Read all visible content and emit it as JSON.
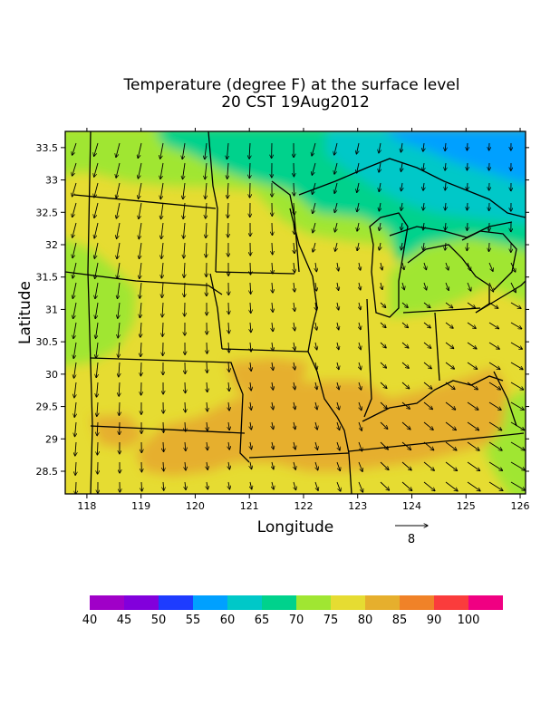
{
  "title": {
    "line1": "Temperature (degree F) at the surface level",
    "line2": "20 CST 19Aug2012"
  },
  "axes": {
    "xlabel": "Longitude",
    "ylabel": "Latitude",
    "xticks": [
      "118",
      "119",
      "120",
      "121",
      "122",
      "123",
      "124",
      "125",
      "126"
    ],
    "yticks": [
      "33.5",
      "33",
      "32.5",
      "32",
      "31.5",
      "31",
      "30.5",
      "30",
      "29.5",
      "29",
      "28.5"
    ],
    "xrange": [
      117.6,
      126.1
    ],
    "yrange": [
      28.15,
      33.75
    ]
  },
  "vector_reference": {
    "label": "8"
  },
  "colorbar": {
    "labels": [
      "40",
      "45",
      "50",
      "55",
      "60",
      "65",
      "70",
      "75",
      "80",
      "85",
      "90",
      "100"
    ],
    "colors": [
      "#a000c8",
      "#8200dc",
      "#1e3cff",
      "#00a0ff",
      "#00c8c8",
      "#00d28c",
      "#a0e632",
      "#e6dc32",
      "#e6af2d",
      "#f08228",
      "#fa3c3c",
      "#f00082"
    ]
  }
}
